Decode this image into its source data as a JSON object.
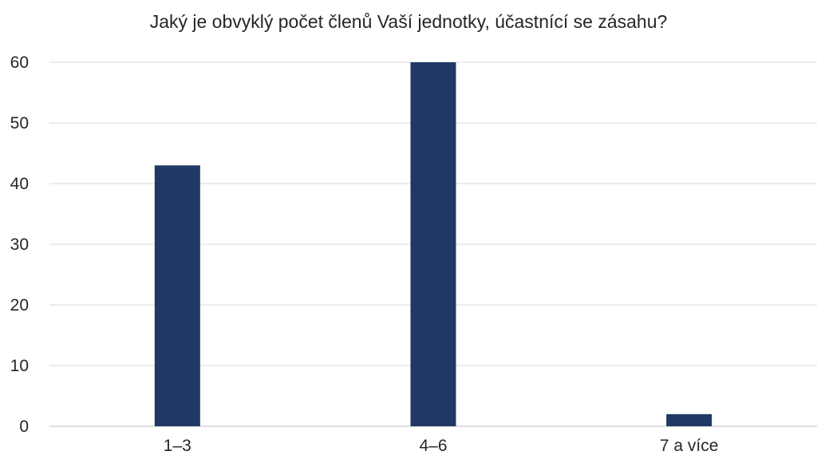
{
  "chart_data": {
    "type": "bar",
    "title": "Jaký je obvyklý počet členů Vaší jednotky, účastnící se zásahu?",
    "xlabel": "",
    "ylabel": "",
    "categories": [
      "1–3",
      "4–6",
      "7 a více"
    ],
    "values": [
      43,
      60,
      2
    ],
    "ylim": [
      0,
      60
    ],
    "yticks": [
      0,
      10,
      20,
      30,
      40,
      50,
      60
    ],
    "grid": true,
    "legend": "none",
    "colors": {
      "bar": "#203864",
      "grid": "#d9d9d9",
      "axis": "#bfbfbf",
      "text": "#262626"
    }
  }
}
